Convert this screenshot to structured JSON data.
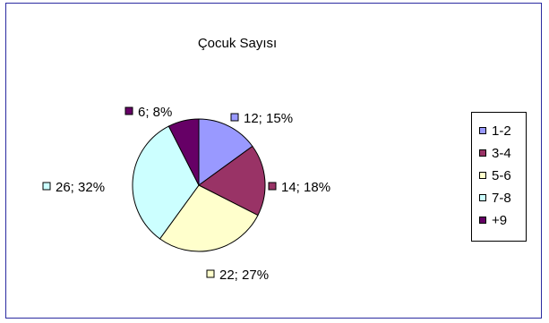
{
  "chart_data": {
    "type": "pie",
    "title": "Çocuk Sayısı",
    "categories": [
      "1-2",
      "3-4",
      "5-6",
      "7-8",
      "+9"
    ],
    "values": [
      12,
      14,
      22,
      26,
      6
    ],
    "percentages": [
      15,
      18,
      27,
      32,
      8
    ],
    "data_labels": [
      "12; 15%",
      "14; 18%",
      "22; 27%",
      "26; 32%",
      "6; 8%"
    ],
    "colors": [
      "#9999ff",
      "#993366",
      "#ffffcc",
      "#ccffff",
      "#660066"
    ],
    "legend_position": "right"
  }
}
